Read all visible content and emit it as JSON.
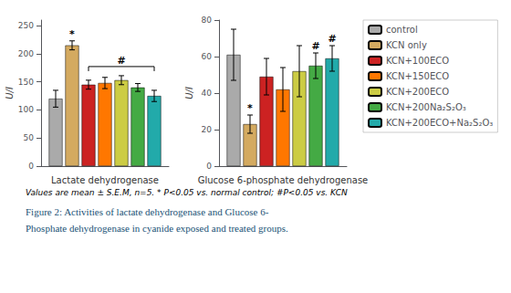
{
  "chart_data": [
    {
      "type": "bar",
      "xlabel": "Lactate dehydrogenase",
      "ylabel": "U/l",
      "categories": [
        null
      ],
      "series": [
        {
          "name": "control",
          "color": "#aaaaaa",
          "values": [
            120
          ],
          "errors": [
            15
          ]
        },
        {
          "name": "KCN only",
          "color": "#d4aa60",
          "values": [
            215
          ],
          "errors": [
            8
          ]
        },
        {
          "name": "KCN+100ECO",
          "color": "#cc2222",
          "values": [
            145
          ],
          "errors": [
            8
          ]
        },
        {
          "name": "KCN+150ECO",
          "color": "#ff7700",
          "values": [
            148
          ],
          "errors": [
            10
          ]
        },
        {
          "name": "KCN+200ECO",
          "color": "#cccc44",
          "values": [
            153
          ],
          "errors": [
            8
          ]
        },
        {
          "name": "KCN+200Na₂S₂O₃",
          "color": "#44aa44",
          "values": [
            140
          ],
          "errors": [
            7
          ]
        },
        {
          "name": "KCN+200ECO+Na₂S₂O₃",
          "color": "#22aaaa",
          "values": [
            125
          ],
          "errors": [
            10
          ]
        }
      ],
      "ylim": [
        0,
        260
      ],
      "yticks": [
        0,
        50,
        100,
        150,
        200,
        250
      ],
      "grid": false,
      "annotations": [
        {
          "text": "*",
          "at": "KCN only"
        },
        {
          "text": "#",
          "span": [
            "KCN+100ECO",
            "KCN+200ECO+Na₂S₂O₃"
          ]
        }
      ]
    },
    {
      "type": "bar",
      "xlabel": "Glucose 6-phosphate dehydrogenase",
      "ylabel": "U/l",
      "categories": [
        null
      ],
      "series": [
        {
          "name": "control",
          "color": "#aaaaaa",
          "values": [
            61
          ],
          "errors": [
            14
          ]
        },
        {
          "name": "KCN only",
          "color": "#d4aa60",
          "values": [
            23
          ],
          "errors": [
            5
          ]
        },
        {
          "name": "KCN+100ECO",
          "color": "#cc2222",
          "values": [
            49
          ],
          "errors": [
            10
          ]
        },
        {
          "name": "KCN+150ECO",
          "color": "#ff7700",
          "values": [
            42
          ],
          "errors": [
            12
          ]
        },
        {
          "name": "KCN+200ECO",
          "color": "#cccc44",
          "values": [
            52
          ],
          "errors": [
            14
          ]
        },
        {
          "name": "KCN+200Na₂S₂O₃",
          "color": "#44aa44",
          "values": [
            55
          ],
          "errors": [
            7
          ]
        },
        {
          "name": "KCN+200ECO+Na₂S₂O₃",
          "color": "#22aaaa",
          "values": [
            59
          ],
          "errors": [
            7
          ]
        }
      ],
      "ylim": [
        0,
        80
      ],
      "yticks": [
        0,
        20,
        40,
        60,
        80
      ],
      "grid": false,
      "legend": "right",
      "annotations": [
        {
          "text": "*",
          "at": "KCN only"
        },
        {
          "text": "#",
          "at": "KCN+200Na₂S₂O₃"
        },
        {
          "text": "#",
          "at": "KCN+200ECO+Na₂S₂O₃"
        }
      ]
    }
  ],
  "footnote": "Values are mean ± S.E.M, n=5. * P<0.05 vs. normal control; #P<0.05 vs. KCN",
  "caption": [
    "Figure 2: Activities of lactate dehydrogenase and Glucose 6-",
    "Phosphate dehydrogenase in cyanide exposed and treated groups."
  ]
}
